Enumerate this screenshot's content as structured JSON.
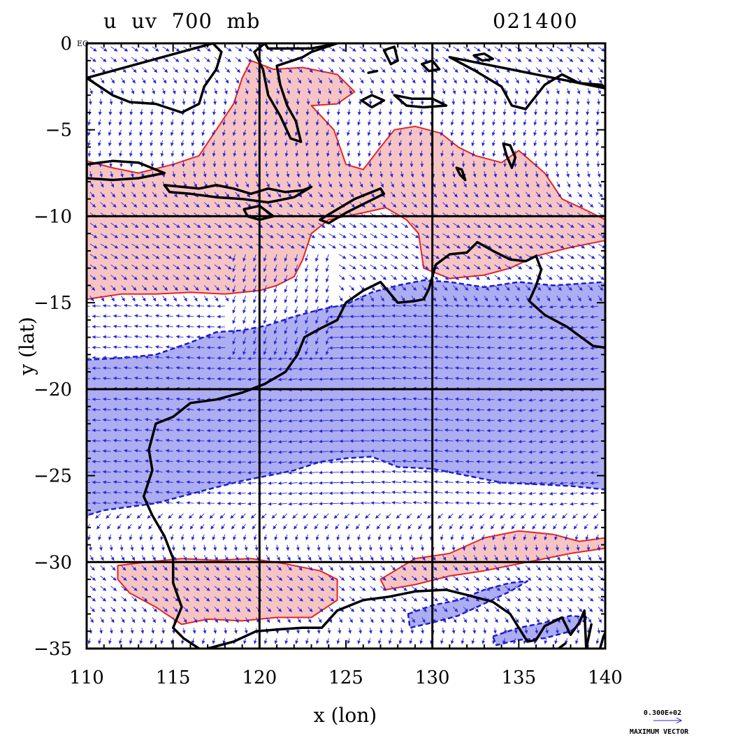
{
  "chart_data": {
    "type": "contour",
    "title": "u  uv  700  mb",
    "title_right": "021400",
    "xlabel": "x (lon)",
    "ylabel": "y (lat)",
    "corner_label": "EQ",
    "xlim": [
      110,
      140
    ],
    "ylim": [
      -35,
      0
    ],
    "x_ticks": [
      110,
      115,
      120,
      125,
      130,
      135,
      140
    ],
    "y_ticks": [
      0,
      -5,
      -10,
      -15,
      -20,
      -25,
      -30,
      -35
    ],
    "x_tick_labels": [
      "110",
      "115",
      "120",
      "125",
      "130",
      "135",
      "140"
    ],
    "y_tick_labels": [
      "0",
      "−5",
      "−10",
      "−15",
      "−20",
      "−25",
      "−30",
      "−35"
    ],
    "grid_lines": {
      "lon": [
        120,
        130
      ],
      "lat": [
        -10,
        -20,
        -30
      ]
    },
    "vector_legend": {
      "value": "0.300E+02",
      "label": "MAXIMUM VECTOR"
    },
    "colors": {
      "positive_fill": "#f7c4c4",
      "positive_line": "#e8231f",
      "negative_fill": "#adadf2",
      "negative_line": "#1c1ccf",
      "coastline": "#000000",
      "vectors": "#2828d8"
    },
    "regions": {
      "positive_north": [
        [
          110,
          -6.8
        ],
        [
          111.5,
          -7.2
        ],
        [
          113,
          -7.5
        ],
        [
          115,
          -7
        ],
        [
          116.5,
          -6.5
        ],
        [
          117.5,
          -5
        ],
        [
          118.5,
          -3.5
        ],
        [
          119,
          -2
        ],
        [
          119.5,
          -1
        ],
        [
          120.8,
          -1.5
        ],
        [
          122.5,
          -1.4
        ],
        [
          124.5,
          -1.8
        ],
        [
          125.5,
          -2.8
        ],
        [
          124.5,
          -3.5
        ],
        [
          123,
          -3.6
        ],
        [
          124.3,
          -5
        ],
        [
          125,
          -7
        ],
        [
          126,
          -7.3
        ],
        [
          127,
          -6
        ],
        [
          127.8,
          -5
        ],
        [
          129,
          -4.8
        ],
        [
          130.5,
          -5.2
        ],
        [
          131.5,
          -6
        ],
        [
          132.5,
          -6.5
        ],
        [
          134,
          -6.9
        ],
        [
          135,
          -6.2
        ],
        [
          136.5,
          -7.5
        ],
        [
          137.5,
          -9
        ],
        [
          139,
          -9.7
        ],
        [
          140,
          -10.2
        ],
        [
          140,
          -11.4
        ],
        [
          138,
          -11.8
        ],
        [
          136,
          -12.3
        ],
        [
          134.5,
          -13
        ],
        [
          133,
          -13.4
        ],
        [
          131,
          -13.6
        ],
        [
          129.5,
          -13
        ],
        [
          129.2,
          -11
        ],
        [
          128.5,
          -10.2
        ],
        [
          127.3,
          -9.5
        ],
        [
          126,
          -9.8
        ],
        [
          124,
          -10.2
        ],
        [
          123,
          -11
        ],
        [
          122.5,
          -12.5
        ],
        [
          122,
          -13.5
        ],
        [
          121,
          -14
        ],
        [
          120,
          -14.3
        ],
        [
          118,
          -14.5
        ],
        [
          116,
          -14.4
        ],
        [
          114,
          -14.5
        ],
        [
          112,
          -14.5
        ],
        [
          110,
          -14.8
        ]
      ],
      "positive_south": [
        [
          111.8,
          -30.2
        ],
        [
          113.5,
          -30
        ],
        [
          115.5,
          -29.8
        ],
        [
          117.5,
          -29.9
        ],
        [
          119.5,
          -29.8
        ],
        [
          121.5,
          -30.1
        ],
        [
          123.5,
          -30.5
        ],
        [
          124.5,
          -31
        ],
        [
          124.5,
          -32.2
        ],
        [
          123,
          -33.2
        ],
        [
          121,
          -33.2
        ],
        [
          119,
          -33.4
        ],
        [
          117,
          -33.3
        ],
        [
          115.5,
          -33.6
        ],
        [
          114,
          -32.6
        ],
        [
          112.5,
          -31.8
        ],
        [
          111.8,
          -31
        ]
      ],
      "positive_southeast": [
        [
          127,
          -31
        ],
        [
          129,
          -29.8
        ],
        [
          131,
          -29.5
        ],
        [
          133,
          -28.6
        ],
        [
          135,
          -28.2
        ],
        [
          137,
          -28.4
        ],
        [
          138.5,
          -28.8
        ],
        [
          140,
          -28.6
        ],
        [
          140,
          -29.2
        ],
        [
          138,
          -29.5
        ],
        [
          135.5,
          -30
        ],
        [
          133,
          -30.5
        ],
        [
          131,
          -30.8
        ],
        [
          129,
          -31.3
        ],
        [
          127.3,
          -31.6
        ]
      ],
      "negative_main": [
        [
          110,
          -18.3
        ],
        [
          112,
          -18.2
        ],
        [
          114,
          -18
        ],
        [
          116,
          -17.3
        ],
        [
          117.5,
          -16.7
        ],
        [
          119,
          -16.6
        ],
        [
          120.5,
          -16.3
        ],
        [
          122,
          -15.8
        ],
        [
          123.5,
          -15.4
        ],
        [
          125,
          -15.1
        ],
        [
          126.5,
          -14.4
        ],
        [
          128,
          -14
        ],
        [
          129.5,
          -13.7
        ],
        [
          131,
          -13.8
        ],
        [
          133,
          -14.1
        ],
        [
          135,
          -13.8
        ],
        [
          137,
          -14
        ],
        [
          138.5,
          -13.9
        ],
        [
          140,
          -13.8
        ],
        [
          140,
          -25.8
        ],
        [
          138,
          -25.6
        ],
        [
          136,
          -25.5
        ],
        [
          134,
          -25.4
        ],
        [
          132,
          -25
        ],
        [
          130,
          -24.6
        ],
        [
          128,
          -24.5
        ],
        [
          126.5,
          -23.9
        ],
        [
          125,
          -24
        ],
        [
          123.5,
          -24.2
        ],
        [
          122,
          -24.7
        ],
        [
          120.5,
          -25
        ],
        [
          119,
          -25.3
        ],
        [
          117,
          -25.8
        ],
        [
          115.5,
          -26.2
        ],
        [
          114,
          -26.6
        ],
        [
          112.5,
          -26.8
        ],
        [
          111,
          -27
        ],
        [
          110,
          -27.3
        ]
      ],
      "negative_southeast_a": [
        [
          128.6,
          -33
        ],
        [
          130,
          -32.5
        ],
        [
          131.5,
          -32.2
        ],
        [
          133,
          -31.6
        ],
        [
          134.5,
          -31.2
        ],
        [
          135.5,
          -31.1
        ],
        [
          134.5,
          -31.7
        ],
        [
          133,
          -32.4
        ],
        [
          131.5,
          -33.1
        ],
        [
          130,
          -33.5
        ],
        [
          128.7,
          -33.8
        ]
      ],
      "negative_southeast_b": [
        [
          133.5,
          -34.3
        ],
        [
          135,
          -33.8
        ],
        [
          136.5,
          -33.5
        ],
        [
          138,
          -33.1
        ],
        [
          139,
          -33.2
        ],
        [
          138,
          -34
        ],
        [
          136.5,
          -34.4
        ],
        [
          135,
          -34.5
        ],
        [
          133.7,
          -34.8
        ]
      ],
      "coast_west": [
        [
          120.3,
          -19.7
        ],
        [
          121.5,
          -19
        ],
        [
          122.2,
          -18
        ],
        [
          122.6,
          -17
        ],
        [
          123.5,
          -16.5
        ],
        [
          124.5,
          -16
        ],
        [
          125,
          -15
        ],
        [
          126,
          -14.3
        ],
        [
          127,
          -13.8
        ],
        [
          128,
          -15
        ],
        [
          129,
          -14.9
        ],
        [
          129.5,
          -14.8
        ],
        [
          129.8,
          -14.2
        ],
        [
          130.2,
          -12.8
        ],
        [
          131,
          -12.2
        ],
        [
          132,
          -12.1
        ],
        [
          132.6,
          -11.5
        ],
        [
          133.5,
          -12
        ],
        [
          134.5,
          -12.5
        ],
        [
          135.4,
          -12.6
        ],
        [
          136,
          -12.3
        ],
        [
          136.3,
          -13.1
        ],
        [
          136,
          -14
        ],
        [
          135.6,
          -14.9
        ],
        [
          136.5,
          -15.7
        ],
        [
          137.8,
          -16.4
        ],
        [
          139.3,
          -17.5
        ],
        [
          140,
          -17.6
        ]
      ],
      "coast_west_south": [
        [
          120.3,
          -19.7
        ],
        [
          119,
          -20.2
        ],
        [
          117.5,
          -20.6
        ],
        [
          116,
          -20.8
        ],
        [
          115,
          -21.6
        ],
        [
          114,
          -22
        ],
        [
          113.6,
          -23.5
        ],
        [
          113.8,
          -24.7
        ],
        [
          113.3,
          -26.2
        ],
        [
          113.8,
          -27.3
        ],
        [
          114.5,
          -28.5
        ],
        [
          115,
          -29.8
        ],
        [
          115,
          -31.2
        ],
        [
          115.5,
          -32.6
        ],
        [
          115,
          -33.8
        ],
        [
          115.6,
          -34.4
        ],
        [
          116.5,
          -35
        ]
      ],
      "coast_south": [
        [
          117,
          -35
        ],
        [
          118.5,
          -34.6
        ],
        [
          119.8,
          -34
        ],
        [
          121,
          -33.9
        ],
        [
          122.5,
          -33.8
        ],
        [
          123.6,
          -33.8
        ],
        [
          124.5,
          -32.8
        ],
        [
          126,
          -32.2
        ],
        [
          127.5,
          -32
        ],
        [
          129,
          -31.7
        ],
        [
          130.8,
          -31.6
        ],
        [
          132,
          -31.9
        ],
        [
          133.5,
          -32.3
        ],
        [
          134.5,
          -33
        ],
        [
          135.5,
          -34.6
        ],
        [
          136,
          -34.5
        ],
        [
          136.5,
          -33.7
        ],
        [
          137.5,
          -33.2
        ],
        [
          138,
          -34.2
        ],
        [
          138.5,
          -33.5
        ],
        [
          138.8,
          -32.8
        ],
        [
          138.9,
          -35
        ]
      ],
      "coast_south_east": [
        [
          139.7,
          -35
        ],
        [
          139.9,
          -34.3
        ],
        [
          140,
          -34.1
        ]
      ],
      "island_java": [
        [
          110,
          -7
        ],
        [
          111.5,
          -6.8
        ],
        [
          113,
          -6.9
        ],
        [
          114.5,
          -7.5
        ],
        [
          113,
          -7.8
        ],
        [
          111.5,
          -7.9
        ],
        [
          110,
          -7.8
        ]
      ],
      "island_bali_lombok": [
        [
          114.5,
          -8.2
        ],
        [
          116.5,
          -8.4
        ],
        [
          117.5,
          -8.2
        ],
        [
          118.5,
          -8.4
        ],
        [
          119.5,
          -8.7
        ],
        [
          120.5,
          -8.4
        ],
        [
          121.5,
          -8.6
        ],
        [
          122.5,
          -8.5
        ],
        [
          123,
          -8.3
        ],
        [
          122,
          -8.9
        ],
        [
          120.5,
          -9.2
        ],
        [
          119,
          -9
        ],
        [
          117.5,
          -8.9
        ],
        [
          116,
          -8.7
        ],
        [
          114.8,
          -8.6
        ]
      ],
      "island_sumba": [
        [
          119.1,
          -9.6
        ],
        [
          120,
          -9.4
        ],
        [
          120.8,
          -10
        ],
        [
          120,
          -10.2
        ],
        [
          119.3,
          -10
        ]
      ],
      "island_timor": [
        [
          123.5,
          -10.2
        ],
        [
          124.5,
          -9.6
        ],
        [
          125.5,
          -9
        ],
        [
          127,
          -8.4
        ],
        [
          127.2,
          -8.7
        ],
        [
          126,
          -9.3
        ],
        [
          125,
          -9.8
        ],
        [
          124,
          -10.4
        ]
      ],
      "island_sulawesi": [
        [
          119.7,
          -0.5
        ],
        [
          120.2,
          -1.5
        ],
        [
          120.5,
          -3
        ],
        [
          121.2,
          -4.2
        ],
        [
          121.8,
          -5.5
        ],
        [
          122.4,
          -5.7
        ],
        [
          122.1,
          -4.5
        ],
        [
          121.6,
          -3.6
        ],
        [
          121.2,
          -2.4
        ],
        [
          121,
          -1.3
        ],
        [
          122.5,
          -0.8
        ],
        [
          123,
          -0.5
        ],
        [
          124.5,
          0
        ],
        [
          123,
          -0.3
        ],
        [
          121.3,
          -0.3
        ],
        [
          120.5,
          -0.3
        ],
        [
          120.3,
          0
        ]
      ],
      "island_borneo": [
        [
          110,
          -2
        ],
        [
          111.5,
          -3
        ],
        [
          112.5,
          -3.4
        ],
        [
          114,
          -3.5
        ],
        [
          115.5,
          -4
        ],
        [
          116.5,
          -3.5
        ],
        [
          116.8,
          -2.5
        ],
        [
          117.5,
          -1.5
        ],
        [
          117.8,
          -0.5
        ],
        [
          117.3,
          0
        ]
      ],
      "island_new_guinea": [
        [
          131,
          -0.8
        ],
        [
          132.5,
          -1.6
        ],
        [
          134,
          -2.5
        ],
        [
          134.6,
          -3.6
        ],
        [
          135.4,
          -3.8
        ],
        [
          136.5,
          -2.4
        ],
        [
          137.5,
          -1.8
        ],
        [
          138.5,
          -2.3
        ],
        [
          139.8,
          -2.4
        ],
        [
          140,
          -2.6
        ]
      ],
      "island_aru": [
        [
          134.1,
          -5.8
        ],
        [
          134.3,
          -6.5
        ],
        [
          134.6,
          -7.2
        ],
        [
          134.8,
          -6.6
        ],
        [
          134.5,
          -5.9
        ]
      ],
      "island_tanimbar": [
        [
          131.4,
          -7.2
        ],
        [
          131.6,
          -7.6
        ],
        [
          131.9,
          -7.9
        ],
        [
          131.7,
          -7.3
        ]
      ],
      "island_seram": [
        [
          127.8,
          -3
        ],
        [
          128.8,
          -3.2
        ],
        [
          130,
          -3.2
        ],
        [
          130.8,
          -3.6
        ],
        [
          129.5,
          -3.7
        ],
        [
          128.5,
          -3.6
        ]
      ],
      "island_halmahera": [
        [
          127.2,
          -0.4
        ],
        [
          127.6,
          -1.2
        ],
        [
          128,
          -1
        ],
        [
          127.8,
          -0.2
        ]
      ],
      "island_buru": [
        [
          125.9,
          -3.3
        ],
        [
          126.5,
          -3
        ],
        [
          127.2,
          -3.3
        ],
        [
          126.5,
          -3.7
        ]
      ],
      "island_obi": [
        [
          132.4,
          -0.7
        ],
        [
          133,
          -0.6
        ],
        [
          133.5,
          -0.9
        ],
        [
          132.9,
          -1
        ]
      ],
      "island_misool": [
        [
          129.4,
          -1.2
        ],
        [
          130,
          -1
        ],
        [
          130.4,
          -1.5
        ],
        [
          129.8,
          -1.6
        ]
      ],
      "island_tasmania_hint": [
        [
          138.9,
          -35
        ],
        [
          139.2,
          -33.6
        ]
      ],
      "island_kangaroo": [
        [
          137.3,
          -35
        ],
        [
          137.7,
          -34.7
        ]
      ],
      "timor_sea_islet": [
        [
          126.3,
          -1.7
        ],
        [
          126.8,
          -1.6
        ]
      ]
    }
  }
}
